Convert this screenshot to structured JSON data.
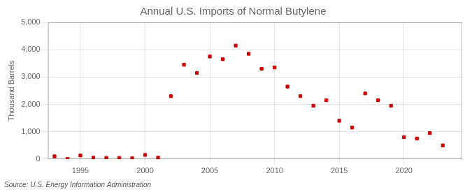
{
  "chart_data": {
    "type": "scatter",
    "title": "Annual U.S. Imports of Normal Butylene",
    "ylabel": "Thousand Barrels",
    "annotations": [
      "Source: U.S. Energy Information Administration"
    ],
    "x": [
      1993,
      1994,
      1995,
      1996,
      1997,
      1998,
      1999,
      2000,
      2001,
      2002,
      2003,
      2004,
      2005,
      2006,
      2007,
      2008,
      2009,
      2010,
      2011,
      2012,
      2013,
      2014,
      2015,
      2016,
      2017,
      2018,
      2019,
      2020,
      2021,
      2022,
      2023
    ],
    "values": [
      100,
      5,
      130,
      50,
      40,
      40,
      30,
      150,
      50,
      2300,
      3450,
      3150,
      3750,
      3650,
      4150,
      3850,
      3300,
      3350,
      2650,
      2300,
      1950,
      2150,
      1400,
      1150,
      2400,
      2150,
      1950,
      800,
      750,
      950,
      500
    ],
    "color": "#cc0000",
    "marker": "square",
    "xlim": [
      1992.5,
      2024.5
    ],
    "xticks": [
      1995,
      2000,
      2005,
      2010,
      2015,
      2020
    ],
    "ylim": [
      0,
      5000
    ],
    "yticks": [
      0,
      {
        "value": 1000,
        "label": "1,000"
      },
      {
        "value": 2000,
        "label": "2,000"
      },
      {
        "value": 3000,
        "label": "3,000"
      },
      {
        "value": 4000,
        "label": "4,000"
      },
      {
        "value": 5000,
        "label": "5,000"
      }
    ],
    "grid": true
  }
}
